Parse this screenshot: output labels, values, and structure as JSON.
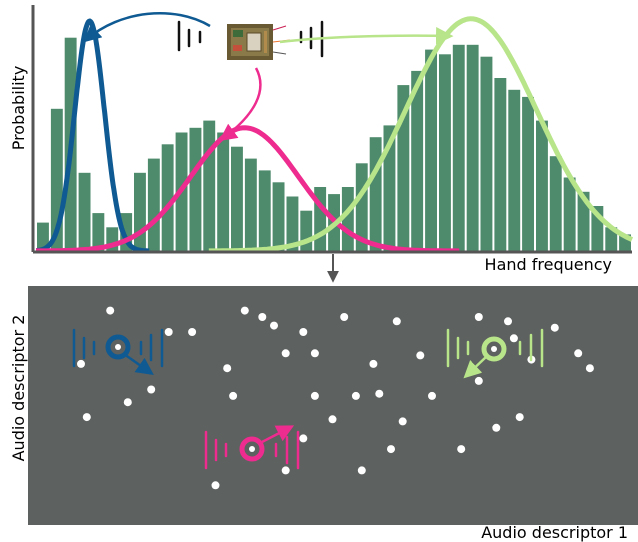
{
  "top_panel": {
    "y_axis_label": "Probability",
    "x_axis_label": "Hand frequency"
  },
  "bottom_panel": {
    "y_axis_label": "Audio descriptor 2",
    "x_axis_label": "Audio descriptor 1",
    "background_color": "#5d615f",
    "point_color": "#ffffff"
  },
  "colors": {
    "histogram_bar": "#4e8a6c",
    "blue_cluster": "#0f5a92",
    "pink_cluster": "#ee2b8e",
    "green_cluster": "#b8e48a",
    "axis": "#555555"
  },
  "icons": [
    "device-photo-icon",
    "sound-wave-icon",
    "cluster-center-icon"
  ],
  "chart_data": {
    "type": "bar",
    "title": "",
    "xlabel": "Hand frequency",
    "ylabel": "Probability",
    "values": [
      0.12,
      0.6,
      0.9,
      0.33,
      0.16,
      0.1,
      0.16,
      0.33,
      0.39,
      0.45,
      0.5,
      0.52,
      0.55,
      0.5,
      0.44,
      0.39,
      0.34,
      0.29,
      0.23,
      0.17,
      0.27,
      0.24,
      0.27,
      0.37,
      0.48,
      0.53,
      0.7,
      0.76,
      0.85,
      0.83,
      0.87,
      0.87,
      0.82,
      0.73,
      0.68,
      0.65,
      0.55,
      0.4,
      0.31,
      0.25,
      0.19,
      0.1,
      0.07
    ],
    "series": [
      {
        "color": "blue",
        "mean": 0.09,
        "sd": 0.025,
        "peak": 0.97
      },
      {
        "color": "pink",
        "mean": 0.35,
        "sd": 0.09,
        "peak": 0.52
      },
      {
        "color": "green",
        "mean": 0.73,
        "sd": 0.11,
        "peak": 0.98
      }
    ],
    "ylim": [
      0,
      1
    ],
    "scatter_points": [
      [
        0.07,
        0.7
      ],
      [
        0.3,
        0.13
      ],
      [
        0.42,
        0.75
      ],
      [
        0.45,
        0.85
      ],
      [
        0.4,
        0.88
      ],
      [
        0.22,
        0.85
      ],
      [
        0.08,
        0.45
      ],
      [
        0.19,
        0.58
      ],
      [
        0.15,
        0.52
      ],
      [
        0.65,
        0.74
      ],
      [
        0.54,
        0.55
      ],
      [
        0.57,
        0.7
      ],
      [
        0.6,
        0.3
      ],
      [
        0.26,
        0.85
      ],
      [
        0.32,
        0.68
      ],
      [
        0.12,
        0.95
      ],
      [
        0.88,
        0.87
      ],
      [
        0.94,
        0.68
      ],
      [
        0.67,
        0.55
      ],
      [
        0.72,
        0.3
      ],
      [
        0.8,
        0.9
      ],
      [
        0.75,
        0.92
      ],
      [
        0.52,
        0.92
      ],
      [
        0.45,
        0.35
      ],
      [
        0.35,
        0.95
      ],
      [
        0.82,
        0.45
      ],
      [
        0.55,
        0.2
      ],
      [
        0.5,
        0.44
      ],
      [
        0.42,
        0.2
      ],
      [
        0.47,
        0.55
      ],
      [
        0.33,
        0.55
      ],
      [
        0.47,
        0.75
      ],
      [
        0.92,
        0.75
      ],
      [
        0.61,
        0.9
      ],
      [
        0.75,
        0.62
      ],
      [
        0.81,
        0.82
      ],
      [
        0.78,
        0.4
      ],
      [
        0.62,
        0.43
      ],
      [
        0.58,
        0.56
      ],
      [
        0.84,
        0.72
      ],
      [
        0.38,
        0.92
      ]
    ]
  }
}
